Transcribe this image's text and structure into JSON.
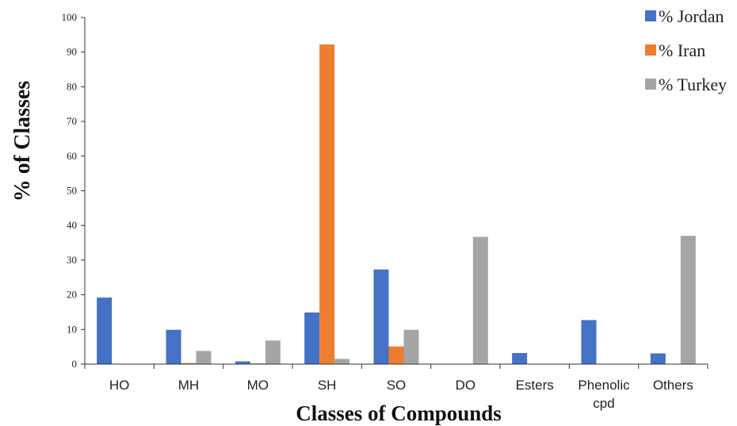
{
  "chart_data": {
    "type": "bar",
    "title": "",
    "xlabel": "Classes of Compounds",
    "ylabel": "% of Classes",
    "ylim": [
      0,
      100
    ],
    "yticks": [
      0,
      10,
      20,
      30,
      40,
      50,
      60,
      70,
      80,
      90,
      100
    ],
    "grid": false,
    "legend_position": "top-right",
    "categories": [
      "HO",
      "MH",
      "MO",
      "SH",
      "SO",
      "DO",
      "Esters",
      "Phenolic cpd",
      "Others"
    ],
    "category_lines": [
      [
        "HO"
      ],
      [
        "MH"
      ],
      [
        "MO"
      ],
      [
        "SH"
      ],
      [
        "SO"
      ],
      [
        "DO"
      ],
      [
        "Esters"
      ],
      [
        "Phenolic",
        "cpd"
      ],
      [
        "Others"
      ]
    ],
    "series": [
      {
        "name": "% Jordan",
        "color": "#4472c4",
        "values": [
          19.2,
          9.9,
          0.8,
          14.9,
          27.3,
          0,
          3.2,
          12.7,
          3.1
        ]
      },
      {
        "name": "% Iran",
        "color": "#ed7d31",
        "values": [
          0,
          0.3,
          0.2,
          92.2,
          5.1,
          0,
          0,
          0,
          0
        ]
      },
      {
        "name": "% Turkey",
        "color": "#a5a5a5",
        "values": [
          0,
          3.8,
          6.8,
          1.5,
          9.9,
          36.7,
          0,
          0,
          37.0
        ]
      }
    ]
  }
}
